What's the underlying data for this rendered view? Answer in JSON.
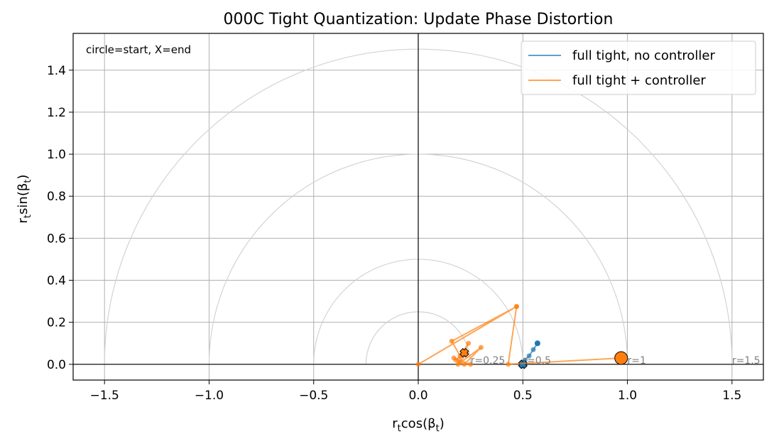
{
  "chart_data": {
    "type": "line",
    "title": "000C Tight Quantization: Update Phase Distortion",
    "xlabel_main": "r",
    "xlabel_sub": "t",
    "xlabel_rest": "cos(β",
    "xlabel_sub2": "t",
    "xlabel_end": ")",
    "ylabel_main": "r",
    "ylabel_sub": "t",
    "ylabel_rest": "sin(β",
    "ylabel_sub2": "t",
    "ylabel_end": ")",
    "xlim": [
      -1.65,
      1.65
    ],
    "ylim": [
      -0.075,
      1.575
    ],
    "xticks": [
      -1.5,
      -1.0,
      -0.5,
      0.0,
      0.5,
      1.0,
      1.5
    ],
    "xtick_labels": [
      "−1.5",
      "−1.0",
      "−0.5",
      "0.0",
      "0.5",
      "1.0",
      "1.5"
    ],
    "yticks": [
      0.0,
      0.2,
      0.4,
      0.6,
      0.8,
      1.0,
      1.2,
      1.4
    ],
    "ytick_labels": [
      "0.0",
      "0.2",
      "0.4",
      "0.6",
      "0.8",
      "1.0",
      "1.2",
      "1.4"
    ],
    "grid": true,
    "annotation": "circle=start, X=end",
    "reference_circles": [
      {
        "r": 0.25,
        "label": "r=0.25"
      },
      {
        "r": 0.5,
        "label": "r=0.5"
      },
      {
        "r": 1.0,
        "label": "r=1"
      },
      {
        "r": 1.5,
        "label": "r=1.5"
      }
    ],
    "legend_position": "top-right",
    "series": [
      {
        "name": "full tight, no controller",
        "color": "#1f77b4",
        "x": [
          0.57,
          0.55,
          0.53,
          0.51,
          0.5
        ],
        "y": [
          0.1,
          0.07,
          0.04,
          0.02,
          0.0
        ]
      },
      {
        "name": "full tight + controller",
        "color": "#ff7f0e",
        "x": [
          0.97,
          0.43,
          0.47,
          0.0,
          0.47,
          0.16,
          0.2,
          0.24,
          0.19,
          0.3,
          0.22,
          0.25,
          0.17,
          0.2,
          0.23,
          0.18,
          0.22
        ],
        "y": [
          0.03,
          0.0,
          0.275,
          0.0,
          0.275,
          0.11,
          0.04,
          0.1,
          0.0,
          0.08,
          0.0,
          0.0,
          0.03,
          0.01,
          0.05,
          0.02,
          0.055
        ]
      }
    ]
  }
}
